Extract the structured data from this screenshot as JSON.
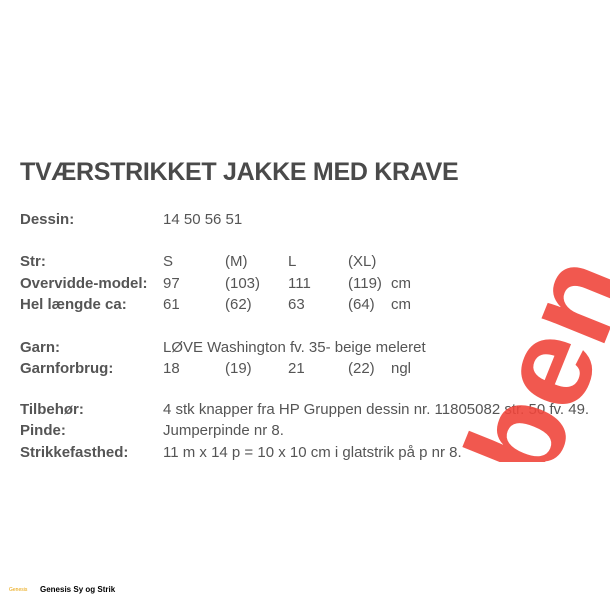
{
  "title": "TVÆRSTRIKKET JAKKE MED KRAVE",
  "dessin": {
    "label": "Dessin:",
    "value": "14 50 56 51"
  },
  "sizes": [
    {
      "label": "Str:",
      "cells": [
        "S",
        "(M)",
        "L",
        "(XL)"
      ]
    },
    {
      "label": "Overvidde-model:",
      "cells": [
        "97",
        "(103)",
        "111",
        "(119)"
      ],
      "unit": "cm"
    },
    {
      "label": "Hel længde ca:",
      "cells": [
        "61",
        "(62)",
        "63",
        "(64)"
      ],
      "unit": "cm"
    }
  ],
  "garn": {
    "label": "Garn:",
    "value": "LØVE Washington fv. 35- beige meleret"
  },
  "garnforbrug": {
    "label": "Garnforbrug:",
    "cells": [
      "18",
      "(19)",
      "21",
      "(22)"
    ],
    "unit": "ngl"
  },
  "details": [
    {
      "label": "Tilbehør:",
      "value": "4 stk knapper fra HP Gruppen dessin nr. 11805082 str. 50 fv. 49."
    },
    {
      "label": "Pinde:",
      "value": "Jumperpinde nr 8."
    },
    {
      "label": "Strikkefasthed:",
      "value": "11 m x 14 p = 10 x 10 cm i glatstrik på p nr 8."
    }
  ],
  "watermark": "ben",
  "footer": {
    "logo": "Genesis",
    "name": "Genesis Sy og Strik"
  }
}
